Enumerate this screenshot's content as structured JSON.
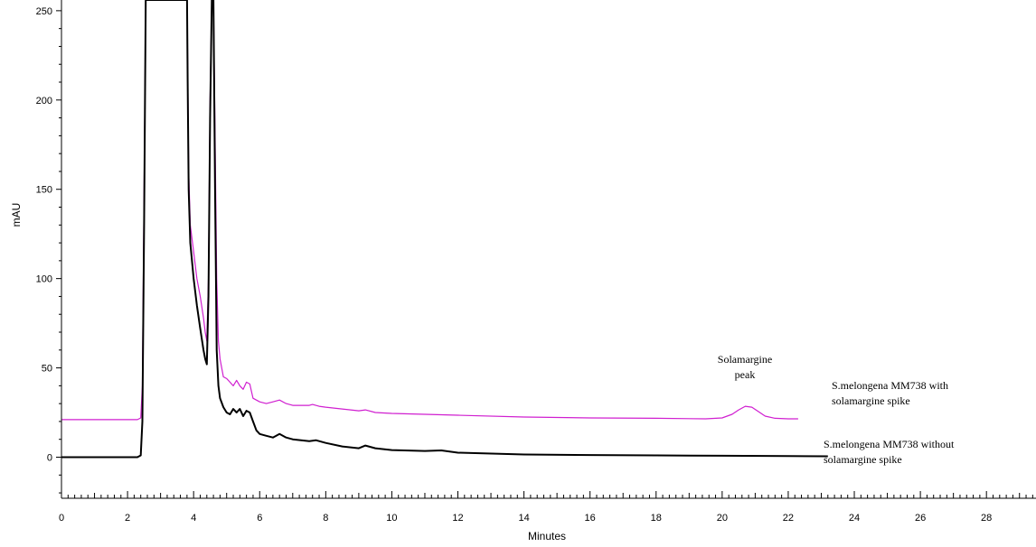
{
  "chart_data": {
    "type": "line",
    "title": "",
    "xlabel": "Minutes",
    "ylabel": "mAU",
    "xlim": [
      0,
      29.5
    ],
    "ylim": [
      -23,
      256
    ],
    "x_ticks": [
      0,
      2,
      4,
      6,
      8,
      10,
      12,
      14,
      16,
      18,
      20,
      22,
      24,
      26,
      28
    ],
    "y_ticks": [
      0,
      50,
      100,
      150,
      200,
      250
    ],
    "minor_x_step": 0.2,
    "grid": false,
    "legend": "none",
    "series": [
      {
        "name": "S.melongena MM738 with solamargine spike",
        "color": "#d01fd0",
        "x": [
          0,
          2.3,
          2.4,
          2.45,
          2.5,
          2.55,
          2.6,
          2.65,
          3.8,
          3.82,
          3.85,
          3.9,
          4.0,
          4.1,
          4.2,
          4.3,
          4.35,
          4.4,
          4.45,
          4.5,
          4.55,
          4.6,
          4.65,
          4.7,
          4.75,
          4.8,
          4.9,
          5.0,
          5.1,
          5.2,
          5.3,
          5.4,
          5.5,
          5.6,
          5.7,
          5.8,
          6.0,
          6.2,
          6.4,
          6.6,
          6.8,
          7.0,
          7.5,
          7.6,
          7.8,
          8.0,
          8.5,
          9.0,
          9.2,
          9.5,
          10.0,
          11.0,
          12.0,
          14.0,
          16.0,
          18.0,
          19.5,
          20.0,
          20.3,
          20.5,
          20.7,
          20.9,
          21.1,
          21.3,
          21.6,
          22.0,
          22.3
        ],
        "y": [
          21,
          21,
          22,
          40,
          150,
          256,
          256,
          256,
          256,
          220,
          160,
          130,
          115,
          100,
          90,
          78,
          70,
          65,
          100,
          200,
          256,
          256,
          180,
          100,
          65,
          55,
          45,
          44,
          42,
          40,
          43,
          40,
          38,
          42,
          41,
          33,
          31,
          30,
          31,
          32,
          30,
          29,
          29,
          29.5,
          28.5,
          28,
          27,
          26,
          26.5,
          25,
          24.5,
          24,
          23.5,
          22.5,
          22,
          21.8,
          21.5,
          22,
          24,
          26.5,
          28.5,
          28,
          25.5,
          23,
          21.8,
          21.5,
          21.5
        ]
      },
      {
        "name": "S.melongena MM738 without solamargine spike",
        "color": "#000000",
        "x": [
          0,
          2.3,
          2.4,
          2.45,
          2.5,
          2.55,
          2.6,
          2.65,
          3.8,
          3.82,
          3.85,
          3.9,
          4.0,
          4.1,
          4.2,
          4.3,
          4.35,
          4.4,
          4.45,
          4.5,
          4.55,
          4.6,
          4.65,
          4.7,
          4.75,
          4.8,
          4.9,
          5.0,
          5.1,
          5.2,
          5.3,
          5.4,
          5.5,
          5.6,
          5.7,
          5.8,
          5.9,
          6.0,
          6.2,
          6.4,
          6.6,
          6.8,
          7.0,
          7.5,
          7.7,
          8.0,
          8.5,
          9.0,
          9.2,
          9.5,
          10.0,
          11.0,
          11.5,
          12.0,
          14.0,
          16.0,
          18.0,
          20.0,
          22.0,
          23.2
        ],
        "y": [
          0,
          0,
          1,
          20,
          130,
          256,
          256,
          256,
          256,
          210,
          150,
          120,
          100,
          85,
          72,
          60,
          55,
          52,
          90,
          190,
          256,
          256,
          150,
          60,
          40,
          33,
          28,
          25,
          24,
          27,
          25,
          27,
          23,
          26,
          25,
          20,
          15,
          13,
          12,
          11,
          13,
          11,
          10,
          9,
          9.5,
          8,
          6,
          5,
          6.5,
          5,
          4,
          3.5,
          3.8,
          2.5,
          1.5,
          1.2,
          1,
          0.8,
          0.6,
          0.5
        ]
      }
    ],
    "annotations": {
      "peak_label_line1": "Solamargine",
      "peak_label_line2": "peak",
      "with_spike_line1": "S.melongena MM738 with",
      "with_spike_line2": "solamargine spike",
      "without_spike_line1": "S.melongena MM738 without",
      "without_spike_line2": "solamargine spike"
    }
  }
}
